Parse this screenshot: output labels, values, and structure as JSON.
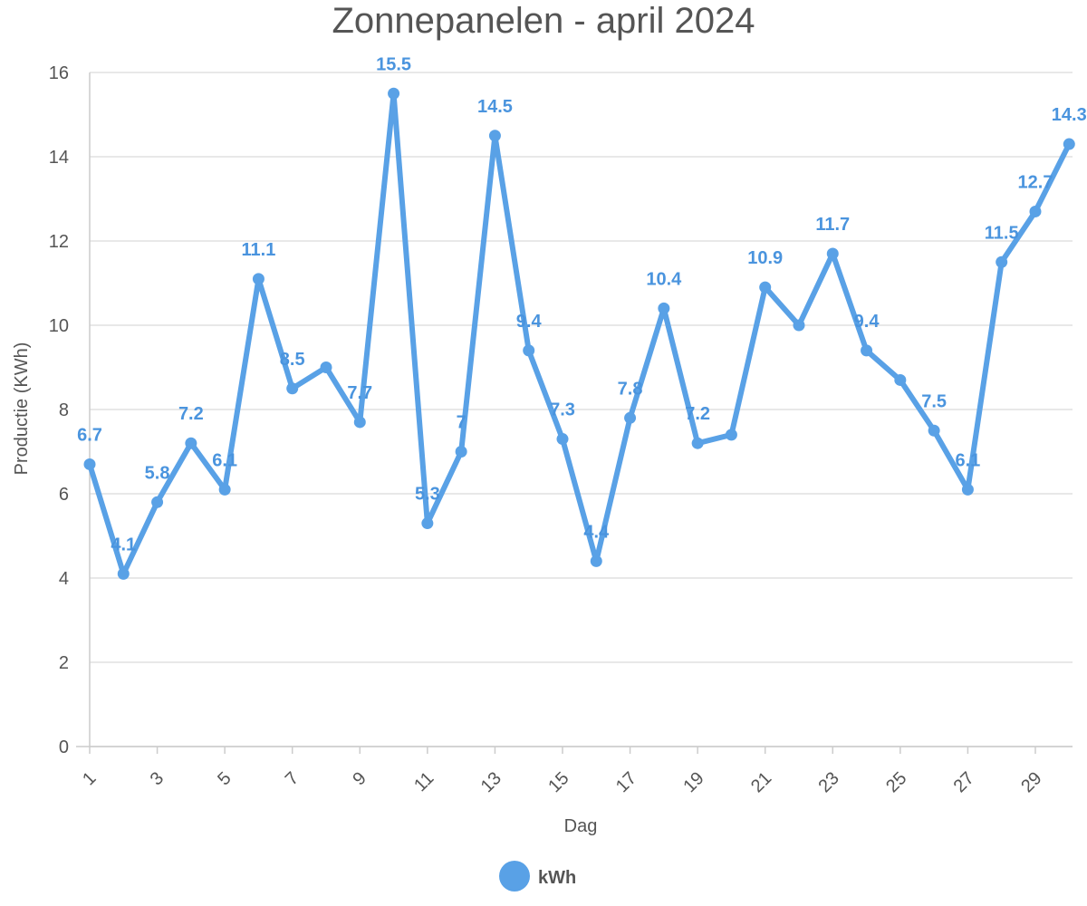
{
  "chart_data": {
    "type": "line",
    "title": "Zonnepanelen - april 2024",
    "xlabel": "Dag",
    "ylabel": "Productie (KWh)",
    "ylim": [
      0,
      16
    ],
    "yticks": [
      0,
      2,
      4,
      6,
      8,
      10,
      12,
      14,
      16
    ],
    "xtick_labels": [
      "1",
      "3",
      "5",
      "7",
      "9",
      "11",
      "13",
      "15",
      "17",
      "19",
      "21",
      "23",
      "25",
      "27",
      "29"
    ],
    "x": [
      1,
      2,
      3,
      4,
      5,
      6,
      7,
      8,
      9,
      10,
      11,
      12,
      13,
      14,
      15,
      16,
      17,
      18,
      19,
      20,
      21,
      22,
      23,
      24,
      25,
      26,
      27,
      28,
      29,
      30
    ],
    "series": [
      {
        "name": "kWh",
        "values": [
          6.7,
          4.1,
          5.8,
          7.2,
          6.1,
          11.1,
          8.5,
          9.0,
          7.7,
          15.5,
          5.3,
          7.0,
          14.5,
          9.4,
          7.3,
          4.4,
          7.8,
          10.4,
          7.2,
          7.4,
          10.9,
          10.0,
          11.7,
          9.4,
          8.7,
          7.5,
          6.1,
          11.5,
          12.7,
          14.3
        ],
        "data_labels": [
          "6.7",
          "4.1",
          "5.8",
          "7.2",
          "6.1",
          "11.1",
          "8.5",
          "",
          "7.7",
          "15.5",
          "5.3",
          "7",
          "14.5",
          "9.4",
          "7.3",
          "4.4",
          "7.8",
          "10.4",
          "7.2",
          "",
          "10.9",
          "",
          "11.7",
          "9.4",
          "",
          "7.5",
          "6.1",
          "11.5",
          "12.7",
          "14.3"
        ]
      }
    ],
    "grid": true,
    "legend": "bottom-center",
    "colors": {
      "series": "#59a1e6",
      "label": "#4a94de",
      "grid": "#e0e0e0",
      "text": "#555555"
    }
  }
}
